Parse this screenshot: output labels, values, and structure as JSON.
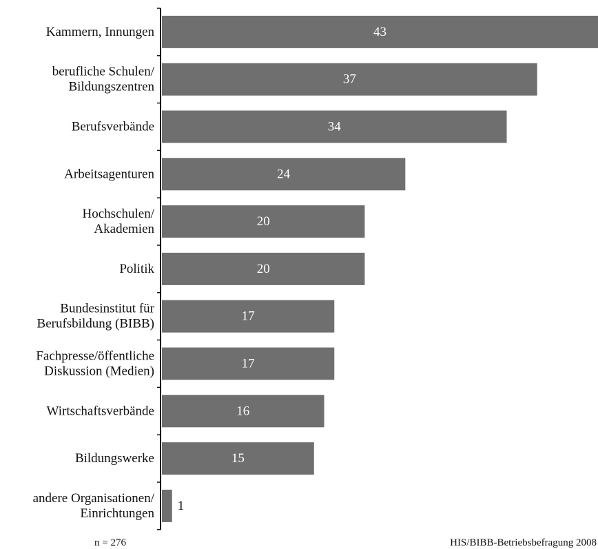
{
  "chart_data": {
    "type": "bar",
    "orientation": "horizontal",
    "categories": [
      [
        "Kammern, Innungen"
      ],
      [
        "berufliche Schulen/",
        "Bildungszentren"
      ],
      [
        "Berufsverbände"
      ],
      [
        "Arbeitsagenturen"
      ],
      [
        "Hochschulen/",
        "Akademien"
      ],
      [
        "Politik"
      ],
      [
        "Bundesinstitut für",
        "Berufsbildung (BIBB)"
      ],
      [
        "Fachpresse/öffentliche",
        "Diskussion (Medien)"
      ],
      [
        "Wirtschaftsverbände"
      ],
      [
        "Bildungswerke"
      ],
      [
        "andere Organisationen/",
        "Einrichtungen"
      ]
    ],
    "values": [
      43,
      37,
      34,
      24,
      20,
      20,
      17,
      17,
      16,
      15,
      1
    ],
    "data_labels": [
      "43",
      "37",
      "34",
      "24",
      "20",
      "20",
      "17",
      "17",
      "16",
      "15",
      "1"
    ],
    "xlim": [
      0,
      43
    ],
    "grid": false,
    "legend": "none",
    "bar_color": "#6f6f6f",
    "label_color_inside": "#ffffff",
    "label_color_outside": "#111111"
  },
  "notes": {
    "sample": "n = 276",
    "source": "HIS/BIBB-Betriebsbefragung 2008"
  }
}
